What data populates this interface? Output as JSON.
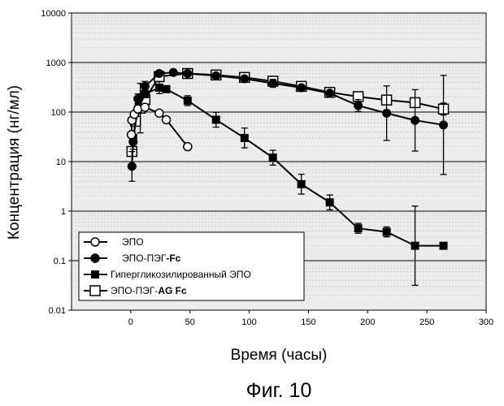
{
  "caption": "Фиг. 10",
  "chart_data": {
    "type": "line",
    "xlabel": "Время (часы)",
    "ylabel": "Концентрация (нг/мл)",
    "xlim": [
      -50,
      300
    ],
    "ylim": [
      0.01,
      10000
    ],
    "yscale": "log",
    "x_ticks": [
      "0",
      "50",
      "100",
      "150",
      "200",
      "250",
      "300"
    ],
    "y_ticks": [
      "0.01",
      "0.1",
      "1",
      "10",
      "100",
      "1000",
      "10000"
    ],
    "grid": true,
    "legend_position": "bottom-left",
    "series": [
      {
        "name": "ЭПО",
        "marker": "circle-open",
        "points": [
          [
            0.5,
            35
          ],
          [
            1,
            68
          ],
          [
            3,
            90
          ],
          [
            6,
            115
          ],
          [
            12,
            125
          ],
          [
            24,
            95
          ],
          [
            30,
            70
          ],
          [
            48,
            20
          ]
        ],
        "err": [
          0,
          0,
          0,
          0,
          0,
          0,
          0,
          0
        ]
      },
      {
        "name": "ЭПО-ПЭГ",
        "name_suffix": "-Fc",
        "marker": "circle-filled",
        "points": [
          [
            1,
            8
          ],
          [
            2,
            25
          ],
          [
            6,
            185
          ],
          [
            12,
            330
          ],
          [
            24,
            600
          ],
          [
            36,
            630
          ],
          [
            48,
            600
          ],
          [
            72,
            540
          ],
          [
            96,
            470
          ],
          [
            120,
            380
          ],
          [
            144,
            310
          ],
          [
            168,
            240
          ],
          [
            192,
            135
          ],
          [
            216,
            95
          ],
          [
            240,
            68
          ],
          [
            264,
            55
          ]
        ],
        "err": [
          0.3,
          0.15,
          0.1,
          0.1,
          0.05,
          0.05,
          0.05,
          0.05,
          0.05,
          0.08,
          0.05,
          0.05,
          0.12,
          0.55,
          0.62,
          1.0
        ]
      },
      {
        "name": "Гипергликозилированный ЭПО",
        "marker": "square-filled",
        "points": [
          [
            2,
            30
          ],
          [
            6,
            110
          ],
          [
            12,
            230
          ],
          [
            24,
            310
          ],
          [
            30,
            290
          ],
          [
            48,
            170
          ],
          [
            72,
            70
          ],
          [
            96,
            30
          ],
          [
            120,
            12
          ],
          [
            144,
            3.5
          ],
          [
            168,
            1.5
          ],
          [
            192,
            0.45
          ],
          [
            216,
            0.38
          ],
          [
            240,
            0.2
          ],
          [
            264,
            0.2
          ]
        ],
        "err": [
          0,
          0,
          0,
          0.12,
          0,
          0.1,
          0.15,
          0.2,
          0.15,
          0.2,
          0.15,
          0.1,
          0.1,
          0.8,
          0
        ]
      },
      {
        "name": "ЭПО",
        "name_middle": "-ПЭГ-",
        "name_suffix": "AG Fc",
        "marker": "square-open",
        "points": [
          [
            1,
            16
          ],
          [
            4,
            65
          ],
          [
            8,
            120
          ],
          [
            12,
            180
          ],
          [
            24,
            520
          ],
          [
            48,
            600
          ],
          [
            72,
            560
          ],
          [
            96,
            500
          ],
          [
            120,
            420
          ],
          [
            144,
            330
          ],
          [
            168,
            250
          ],
          [
            192,
            205
          ],
          [
            216,
            175
          ],
          [
            240,
            155
          ],
          [
            264,
            115
          ]
        ],
        "err": [
          0,
          0,
          0.5,
          0,
          0.05,
          0.05,
          0.05,
          0.05,
          0.05,
          0.05,
          0.05,
          0.05,
          0.05,
          0.05,
          0.12
        ]
      }
    ]
  }
}
